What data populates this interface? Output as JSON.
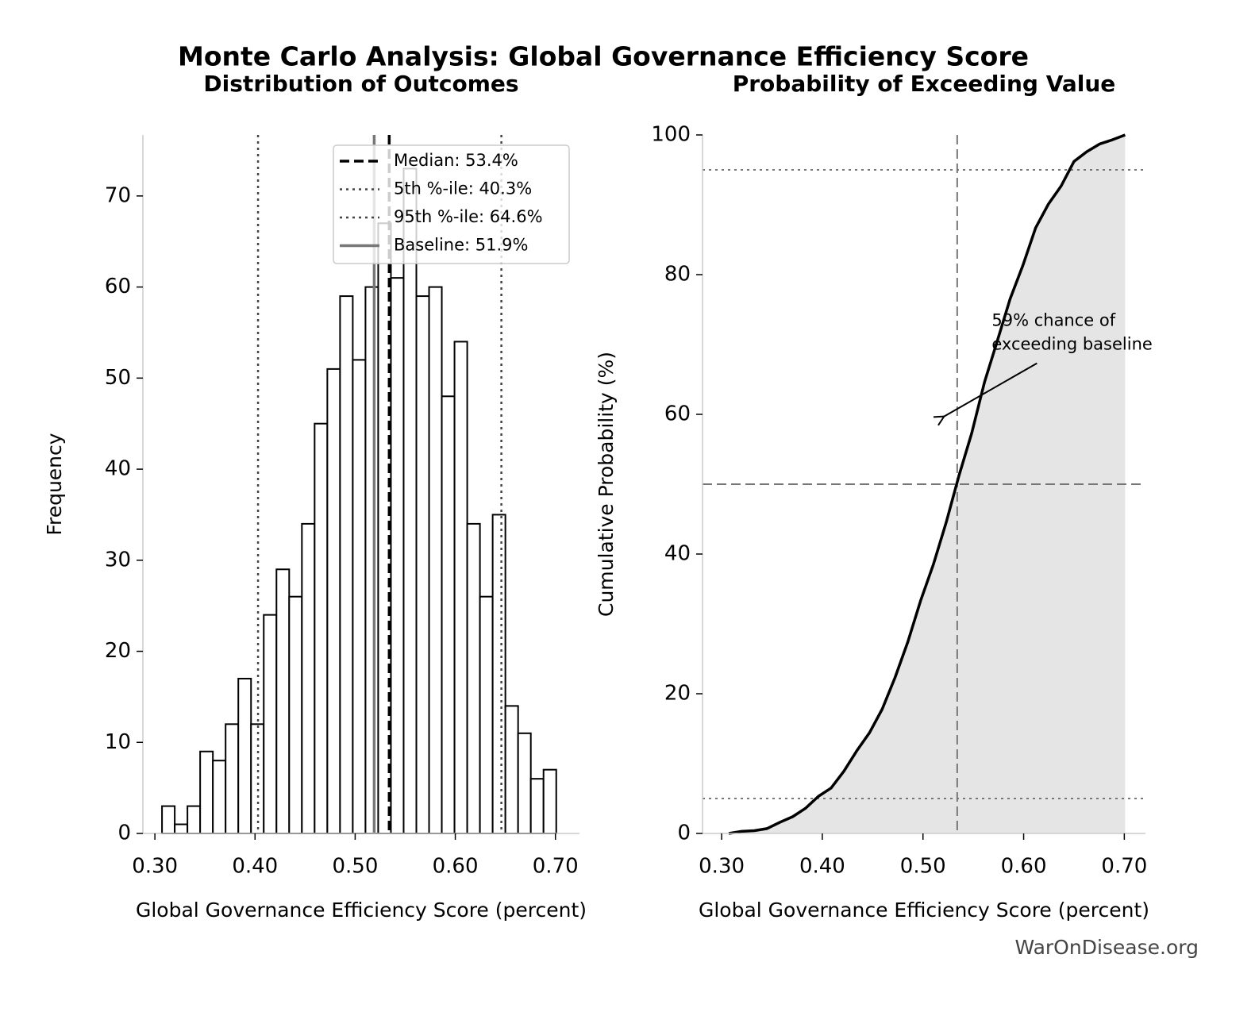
{
  "title": "Monte Carlo Analysis: Global Governance Efficiency Score",
  "footer": "WarOnDisease.org",
  "chart_data": [
    {
      "type": "histogram",
      "title": "Distribution of Outcomes",
      "x_label": "Global Governance Efficiency Score (percent)",
      "y_label": "Frequency",
      "bins": [
        0.3071,
        0.3198,
        0.3325,
        0.3452,
        0.3579,
        0.3706,
        0.3833,
        0.396,
        0.4087,
        0.4214,
        0.4341,
        0.4468,
        0.4595,
        0.4722,
        0.4849,
        0.4976,
        0.5103,
        0.523,
        0.5357,
        0.5484,
        0.5611,
        0.5738,
        0.5865,
        0.5992,
        0.6119,
        0.6246,
        0.6373,
        0.65,
        0.6627,
        0.6754,
        0.6881,
        0.7008
      ],
      "values": [
        3,
        1,
        3,
        9,
        8,
        12,
        17,
        12,
        24,
        29,
        26,
        34,
        45,
        51,
        59,
        52,
        60,
        67,
        61,
        73,
        59,
        60,
        48,
        54,
        34,
        26,
        35,
        14,
        11,
        6,
        7
      ],
      "color": "#ffffff",
      "edge_color": "#000000",
      "xlim": [
        0.288,
        0.724
      ],
      "ylim": [
        0,
        76.7
      ],
      "xticks": [
        {
          "value": 0.3,
          "label": "0.30"
        },
        {
          "value": 0.4,
          "label": "0.40"
        },
        {
          "value": 0.5,
          "label": "0.50"
        },
        {
          "value": 0.6,
          "label": "0.60"
        },
        {
          "value": 0.7,
          "label": "0.70"
        }
      ],
      "yticks": [
        0,
        10,
        20,
        30,
        40,
        50,
        60,
        70
      ],
      "legend": "upper right",
      "lines": [
        {
          "name": "Median: 53.4%",
          "value": 0.534,
          "style": "dashed",
          "color": "#000000"
        },
        {
          "name": "5th %-ile: 40.3%",
          "value": 0.403,
          "style": "dotted",
          "color": "#444444"
        },
        {
          "name": "95th %-ile: 64.6%",
          "value": 0.646,
          "style": "dotted",
          "color": "#444444"
        },
        {
          "name": "Baseline: 51.9%",
          "value": 0.519,
          "style": "solid",
          "color": "#777777"
        }
      ]
    },
    {
      "type": "line",
      "title": "Probability of Exceeding Value",
      "x_label": "Global Governance Efficiency Score (percent)",
      "y_label": "Cumulative Probability (%)",
      "x": [
        0.3071,
        0.3198,
        0.3325,
        0.3452,
        0.3579,
        0.3706,
        0.3833,
        0.396,
        0.4087,
        0.4214,
        0.4341,
        0.4468,
        0.4595,
        0.4722,
        0.4849,
        0.4976,
        0.5103,
        0.523,
        0.5357,
        0.5484,
        0.5611,
        0.5738,
        0.5865,
        0.5992,
        0.6119,
        0.6246,
        0.6373,
        0.65,
        0.6627,
        0.6754,
        0.6881,
        0.7008
      ],
      "values": [
        0,
        0.3,
        0.4,
        0.7,
        1.6,
        2.4,
        3.6,
        5.3,
        6.5,
        8.9,
        11.8,
        14.4,
        17.8,
        22.3,
        27.4,
        33.3,
        38.5,
        44.5,
        51.2,
        57.3,
        64.6,
        70.5,
        76.5,
        81.3,
        86.7,
        90.1,
        92.7,
        96.2,
        97.6,
        98.7,
        99.3,
        100
      ],
      "color": "#000000",
      "fill_color": "#e5e5e5",
      "xlim": [
        0.281,
        0.721
      ],
      "ylim": [
        0,
        100
      ],
      "xticks": [
        {
          "value": 0.3,
          "label": "0.30"
        },
        {
          "value": 0.4,
          "label": "0.40"
        },
        {
          "value": 0.5,
          "label": "0.50"
        },
        {
          "value": 0.6,
          "label": "0.60"
        },
        {
          "value": 0.7,
          "label": "0.70"
        }
      ],
      "yticks": [
        0,
        20,
        40,
        60,
        80,
        100
      ],
      "hlines": [
        {
          "value": 5,
          "style": "dotted"
        },
        {
          "value": 50,
          "style": "dashed"
        },
        {
          "value": 95,
          "style": "dotted"
        }
      ],
      "vline": {
        "value": 0.534,
        "style": "dashed"
      },
      "annotation": {
        "text": [
          "59% chance of",
          "exceeding baseline"
        ],
        "xy": [
          0.521,
          59.7
        ]
      }
    }
  ]
}
